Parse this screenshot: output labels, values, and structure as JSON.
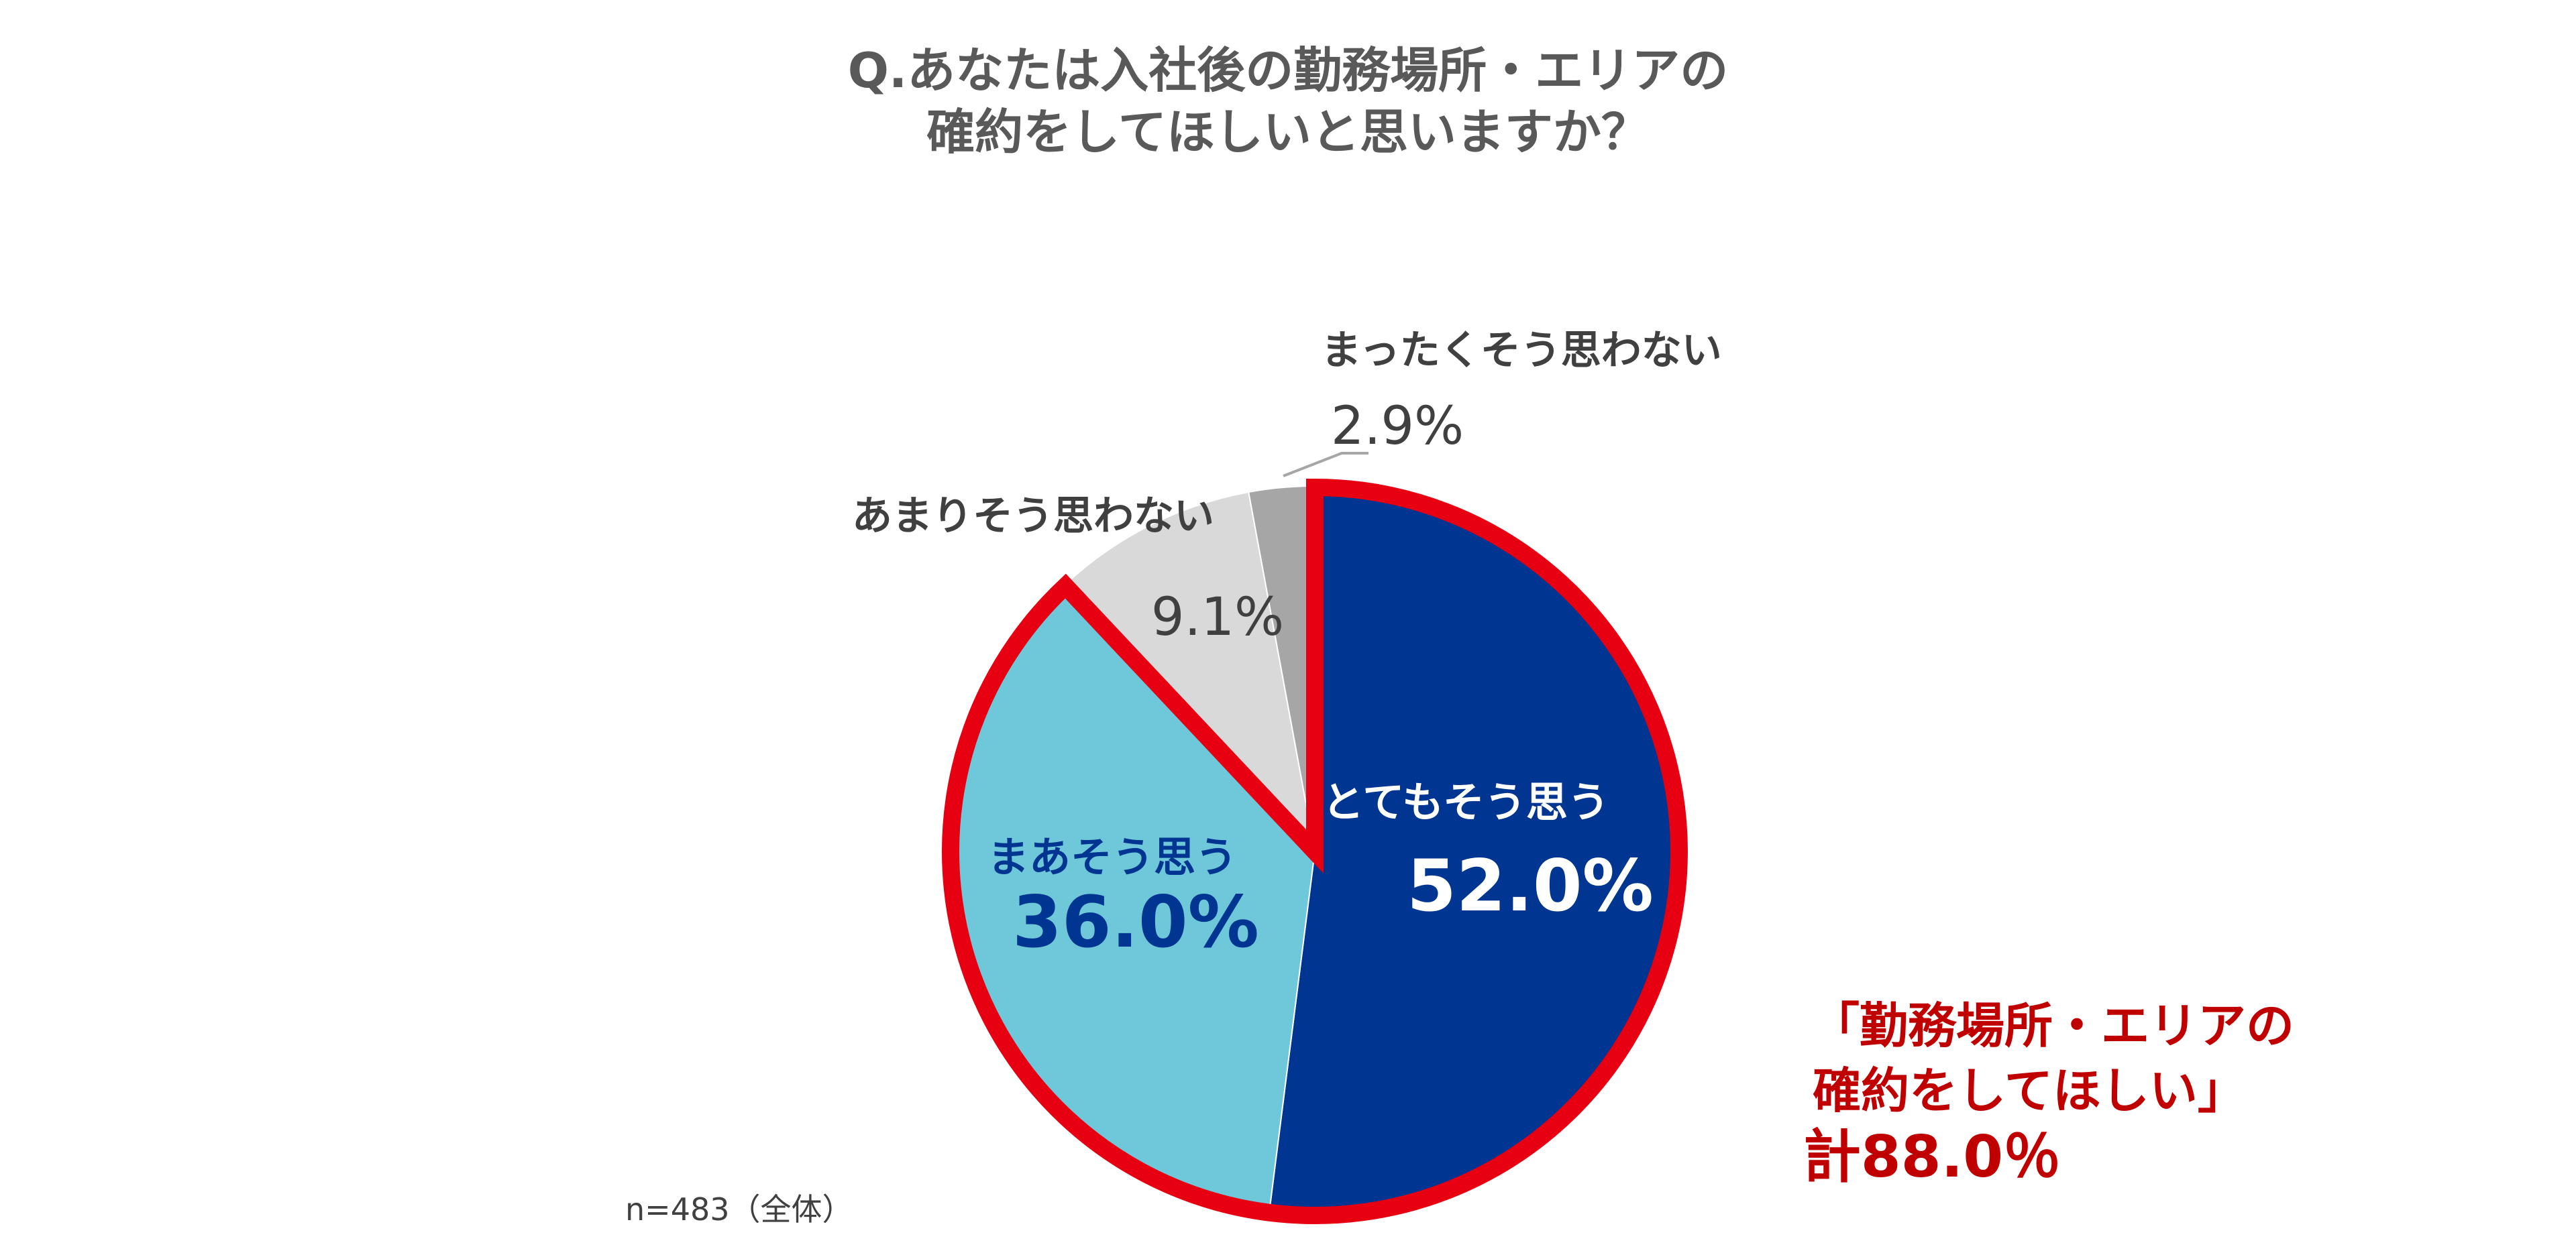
{
  "title": {
    "line1": "Q.あなたは入社後の勤務場所・エリアの",
    "line2": "確約をしてほしいと思いますか？"
  },
  "chart_data": {
    "type": "pie",
    "start_angle_deg": 0,
    "direction": "clockwise",
    "slices": [
      {
        "label": "とてもそう思う",
        "value": 52.0,
        "display": "52.0%",
        "color": "#003591",
        "label_color": "#ffffff",
        "value_color": "#ffffff"
      },
      {
        "label": "まあそう思う",
        "value": 36.0,
        "display": "36.0%",
        "color": "#6ec8da",
        "label_color": "#003591",
        "value_color": "#003591"
      },
      {
        "label": "あまりそう思わない",
        "value": 9.1,
        "display": "9.1%",
        "color": "#d9d9d9",
        "label_color": "#404040",
        "value_color": "#404040"
      },
      {
        "label": "まったくそう思わない",
        "value": 2.9,
        "display": "2.9%",
        "color": "#a6a6a6",
        "label_color": "#404040",
        "value_color": "#404040"
      }
    ],
    "highlight": {
      "slices": [
        "とてもそう思う",
        "まあそう思う"
      ],
      "outline_color": "#e60012",
      "text_color": "#c00000",
      "text_line1": "「勤務場所・エリアの",
      "text_line2": "確約をしてほしい」",
      "total": "計88.0％"
    },
    "note": "n=483（全体）"
  }
}
